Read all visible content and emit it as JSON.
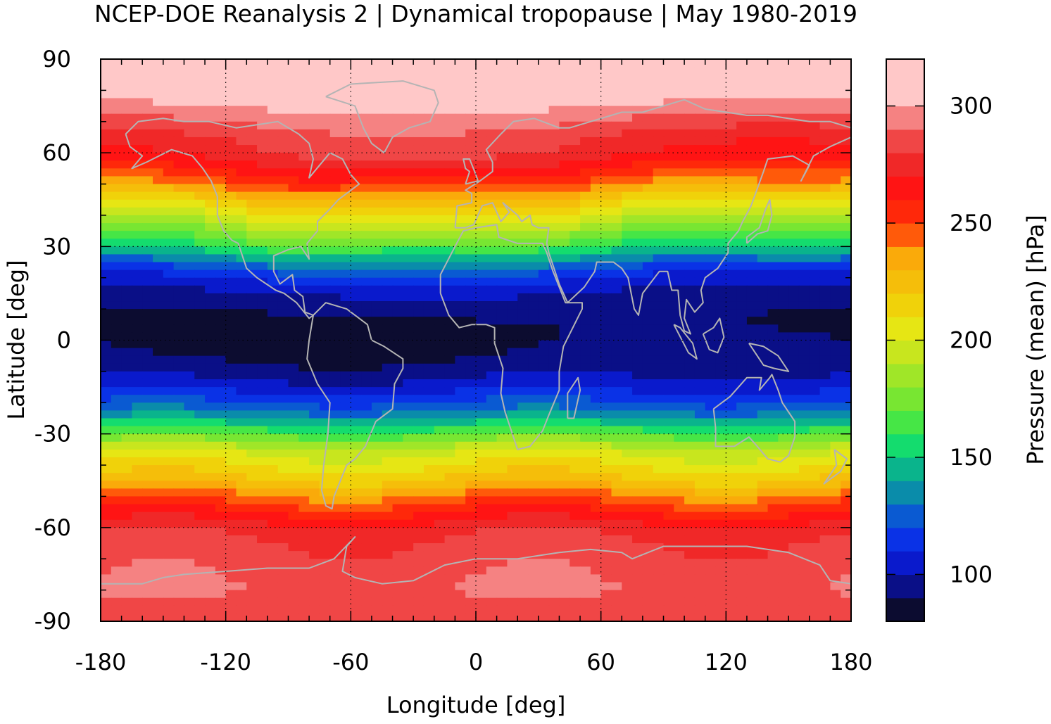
{
  "chart_data": {
    "type": "heatmap",
    "title": "NCEP-DOE Reanalysis 2 | Dynamical tropopause | May 1980-2019",
    "xlabel": "Longitude [deg]",
    "ylabel": "Latitude [deg]",
    "xlim": [
      -180,
      180
    ],
    "ylim": [
      -90,
      90
    ],
    "x_ticks": [
      -180,
      -120,
      -60,
      0,
      60,
      120,
      180
    ],
    "y_ticks": [
      90,
      60,
      30,
      0,
      -30,
      -60,
      -90
    ],
    "x_tick_labels": [
      "-180",
      "-120",
      "-60",
      "0",
      "60",
      "120",
      "180"
    ],
    "y_tick_labels": [
      "90",
      "60",
      "30",
      "0",
      "-30",
      "-60",
      "-90"
    ],
    "grid": true,
    "coastlines": true,
    "coastline_color": "#b4b4b4",
    "colorbar": {
      "label": "Pressure (mean) [hPa]",
      "range": [
        80,
        320
      ],
      "step": 10,
      "ticks": [
        100,
        150,
        200,
        250,
        300
      ],
      "tick_labels": [
        "100",
        "150",
        "200",
        "250",
        "300"
      ],
      "colors": [
        "#0c0c30",
        "#0a0f87",
        "#0a1acc",
        "#0a32e6",
        "#0a5ad2",
        "#0a8caa",
        "#0ab48c",
        "#14dc6e",
        "#46e646",
        "#78e632",
        "#a0e628",
        "#c8e61e",
        "#e6e614",
        "#f0d20a",
        "#f5be0a",
        "#faaa0a",
        "#ff5a0a",
        "#ff280a",
        "#ff1414",
        "#f02828",
        "#f04646",
        "#f58282",
        "#ffc8c8",
        "#ffc8c8"
      ]
    },
    "zonal_mean_profile": {
      "latitude": [
        90,
        80,
        75,
        70,
        65,
        60,
        55,
        50,
        45,
        40,
        35,
        30,
        25,
        20,
        15,
        10,
        5,
        0,
        -5,
        -10,
        -15,
        -20,
        -25,
        -30,
        -35,
        -40,
        -45,
        -50,
        -55,
        -60,
        -65,
        -70,
        -75,
        -80,
        -85,
        -90
      ],
      "pressure_hpa": [
        318,
        312,
        300,
        290,
        280,
        275,
        262,
        245,
        220,
        200,
        180,
        160,
        130,
        110,
        98,
        92,
        88,
        88,
        90,
        96,
        106,
        120,
        140,
        168,
        195,
        210,
        222,
        242,
        260,
        275,
        282,
        285,
        288,
        290,
        286,
        284
      ]
    }
  }
}
